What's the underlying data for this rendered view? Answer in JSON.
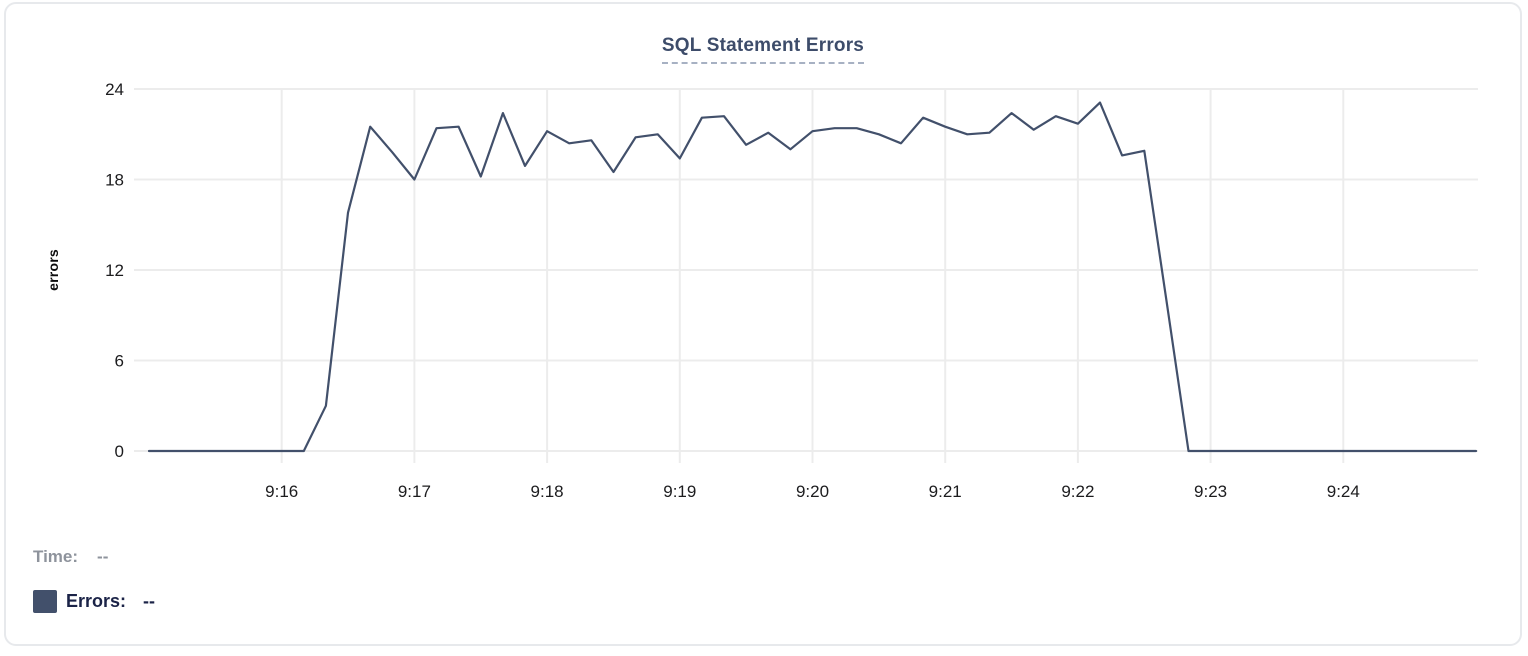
{
  "chart_data": {
    "type": "line",
    "title": "SQL Statement Errors",
    "ylabel": "errors",
    "xlabel": "",
    "x_start": "9:15:00",
    "x_end": "9:25:00",
    "interval_seconds": 10,
    "x_ticks": [
      "9:16",
      "9:17",
      "9:18",
      "9:19",
      "9:20",
      "9:21",
      "9:22",
      "9:23",
      "9:24"
    ],
    "y_ticks": [
      0,
      6,
      12,
      18,
      24
    ],
    "ylim": [
      0,
      24
    ],
    "grid": true,
    "legend_position": "bottom-left",
    "series": [
      {
        "name": "Errors",
        "color": "#42506b",
        "values": [
          0,
          0,
          0,
          0,
          0,
          0,
          0,
          0,
          3,
          15.8,
          21.5,
          19.8,
          18,
          21.4,
          21.5,
          18.2,
          22.4,
          18.9,
          21.2,
          20.4,
          20.6,
          18.5,
          20.8,
          21,
          19.4,
          22.1,
          22.2,
          20.3,
          21.1,
          20,
          21.2,
          21.4,
          21.4,
          21,
          20.4,
          22.1,
          21.5,
          21,
          21.1,
          22.4,
          21.3,
          22.2,
          21.7,
          23.1,
          19.6,
          19.9,
          10,
          0,
          0,
          0,
          0,
          0,
          0,
          0,
          0,
          0,
          0,
          0,
          0,
          0,
          0
        ]
      }
    ]
  },
  "tooltip": {
    "time_label": "Time:",
    "time_value": "--",
    "errors_label": "Errors:",
    "errors_value": "--"
  },
  "colors": {
    "title": "#3d4c6a",
    "title_underline": "#a7b1c3",
    "grid": "#ececec",
    "tick_label": "#1c1c1e",
    "series_line": "#42506b",
    "time_label": "#8e939c",
    "errors_label": "#1b2347",
    "card_border": "#e7e9ec",
    "background": "#ffffff"
  }
}
